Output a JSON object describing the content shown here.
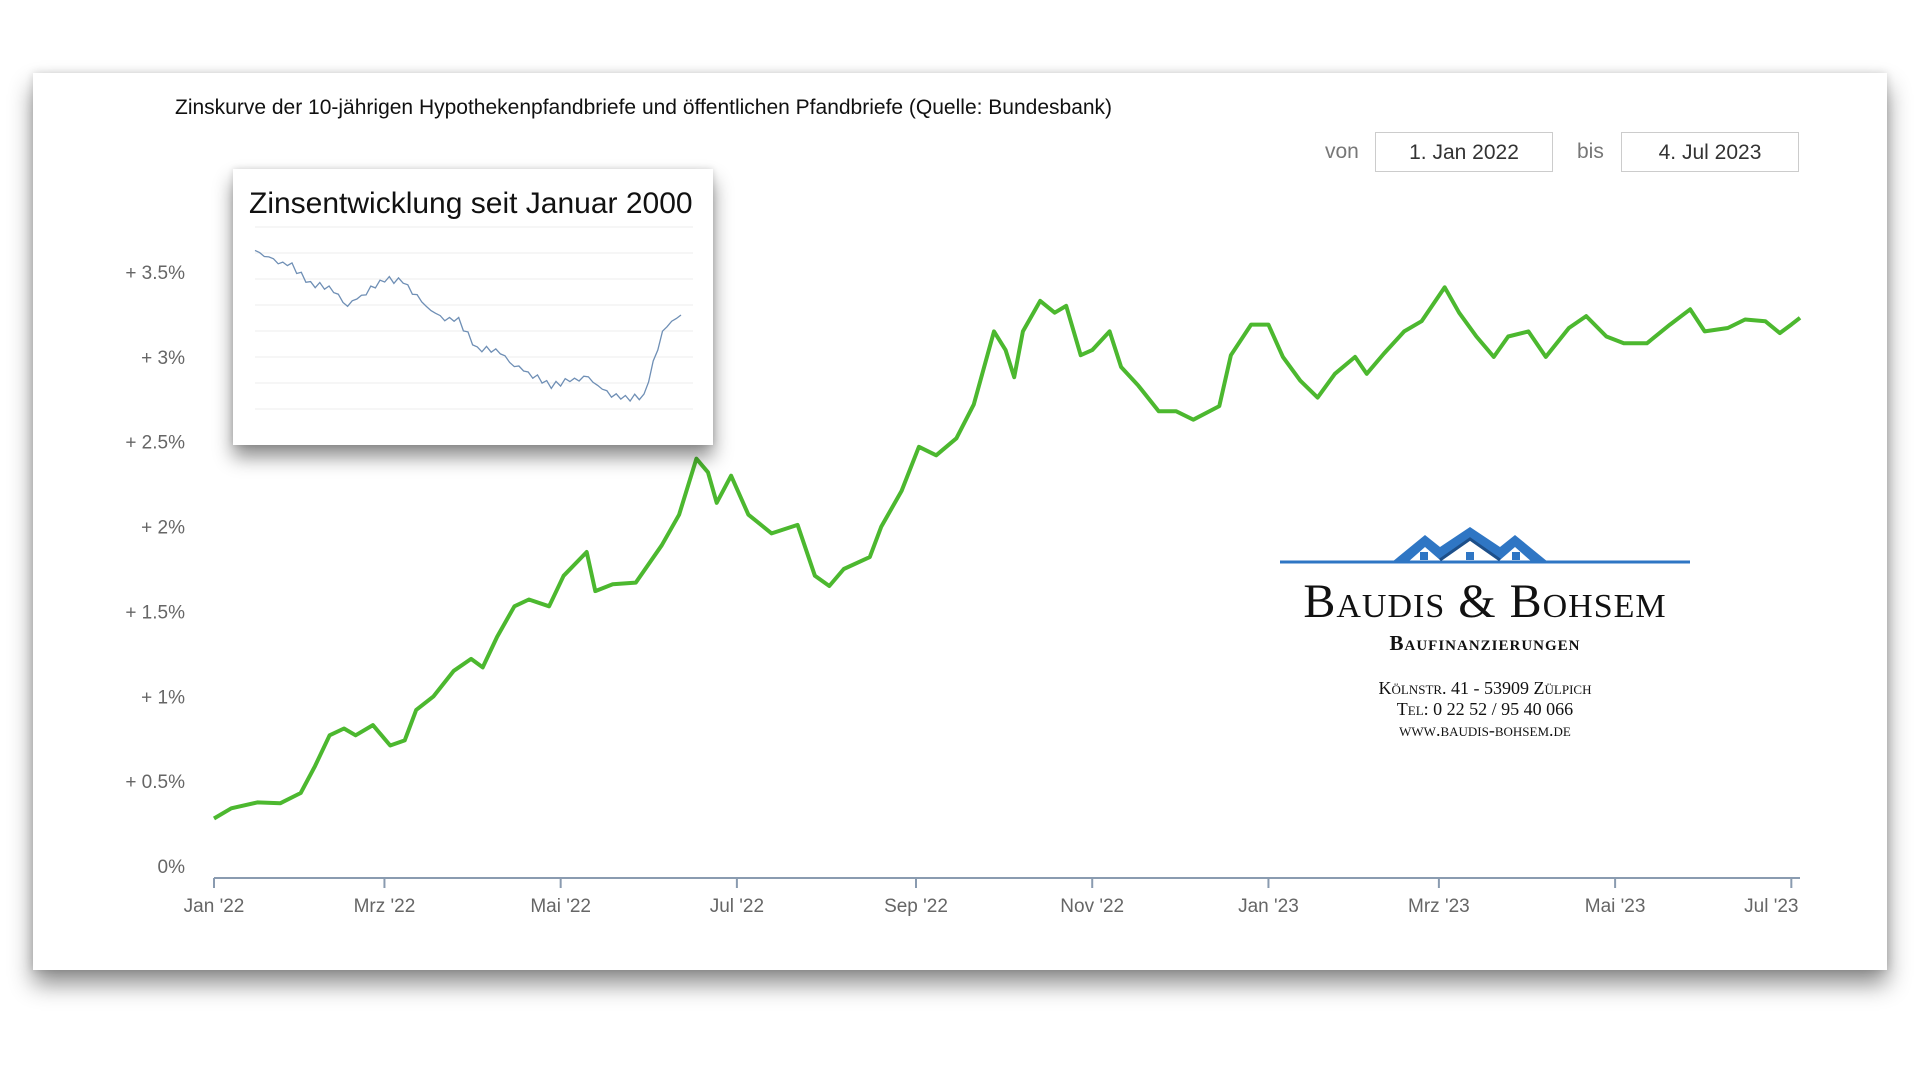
{
  "header": {
    "title": "Zinskurve der 10-jährigen Hypothekenpfandbriefe und öffentlichen Pfandbriefe (Quelle: Bundesbank)",
    "range_from_label": "von",
    "range_from_value": "1. Jan 2022",
    "range_to_label": "bis",
    "range_to_value": "4. Jul 2023"
  },
  "inset": {
    "title": "Zinsentwicklung seit Januar 2000"
  },
  "logo": {
    "brand": "Baudis & Bohsem",
    "subtitle": "Baufinanzierungen",
    "address": "Kölnstr. 41 - 53909 Zülpich",
    "phone": "Tel: 0 22 52 / 95 40 066",
    "web": "www.baudis-bohsem.de",
    "color": "#2f76c4"
  },
  "chart_data": [
    {
      "type": "line",
      "title": "Zinskurve der 10-jährigen Hypothekenpfandbriefe und öffentlichen Pfandbriefe (Quelle: Bundesbank)",
      "xlabel": "",
      "ylabel": "",
      "ylim": [
        0,
        3.5
      ],
      "xlim": [
        "2022-01-01",
        "2023-07-04"
      ],
      "grid": false,
      "line_color": "#4cb82f",
      "yticks": [
        {
          "value": 0,
          "label": "0%"
        },
        {
          "value": 0.5,
          "label": "+ 0.5%"
        },
        {
          "value": 1,
          "label": "+ 1%"
        },
        {
          "value": 1.5,
          "label": "+ 1.5%"
        },
        {
          "value": 2,
          "label": "+ 2%"
        },
        {
          "value": 2.5,
          "label": "+ 2.5%"
        },
        {
          "value": 3,
          "label": "+ 3%"
        },
        {
          "value": 3.5,
          "label": "+ 3.5%"
        }
      ],
      "xticks": [
        {
          "date": "2022-01-01",
          "label": "Jan '22"
        },
        {
          "date": "2022-03-01",
          "label": "Mrz '22"
        },
        {
          "date": "2022-05-01",
          "label": "Mai '22"
        },
        {
          "date": "2022-07-01",
          "label": "Jul '22"
        },
        {
          "date": "2022-09-01",
          "label": "Sep '22"
        },
        {
          "date": "2022-11-01",
          "label": "Nov '22"
        },
        {
          "date": "2023-01-01",
          "label": "Jan '23"
        },
        {
          "date": "2023-03-01",
          "label": "Mrz '23"
        },
        {
          "date": "2023-05-01",
          "label": "Mai '23"
        },
        {
          "date": "2023-07-01",
          "label": "Jul '23"
        }
      ],
      "x": [
        "2022-01-01",
        "2022-01-07",
        "2022-01-16",
        "2022-01-24",
        "2022-01-31",
        "2022-02-05",
        "2022-02-10",
        "2022-02-15",
        "2022-02-19",
        "2022-02-25",
        "2022-03-03",
        "2022-03-08",
        "2022-03-12",
        "2022-03-18",
        "2022-03-25",
        "2022-03-31",
        "2022-04-04",
        "2022-04-09",
        "2022-04-15",
        "2022-04-20",
        "2022-04-27",
        "2022-05-02",
        "2022-05-10",
        "2022-05-13",
        "2022-05-19",
        "2022-05-27",
        "2022-06-05",
        "2022-06-11",
        "2022-06-17",
        "2022-06-21",
        "2022-06-24",
        "2022-06-29",
        "2022-07-05",
        "2022-07-13",
        "2022-07-22",
        "2022-07-28",
        "2022-08-02",
        "2022-08-07",
        "2022-08-16",
        "2022-08-20",
        "2022-08-27",
        "2022-09-02",
        "2022-09-08",
        "2022-09-15",
        "2022-09-21",
        "2022-09-28",
        "2022-10-02",
        "2022-10-05",
        "2022-10-08",
        "2022-10-14",
        "2022-10-19",
        "2022-10-23",
        "2022-10-28",
        "2022-11-01",
        "2022-11-07",
        "2022-11-11",
        "2022-11-17",
        "2022-11-24",
        "2022-11-30",
        "2022-12-06",
        "2022-12-15",
        "2022-12-19",
        "2022-12-26",
        "2023-01-01",
        "2023-01-06",
        "2023-01-12",
        "2023-01-18",
        "2023-01-24",
        "2023-01-31",
        "2023-02-04",
        "2023-02-10",
        "2023-02-17",
        "2023-02-23",
        "2023-03-03",
        "2023-03-08",
        "2023-03-14",
        "2023-03-20",
        "2023-03-25",
        "2023-04-01",
        "2023-04-07",
        "2023-04-15",
        "2023-04-21",
        "2023-04-28",
        "2023-05-04",
        "2023-05-12",
        "2023-05-20",
        "2023-05-27",
        "2023-06-01",
        "2023-06-09",
        "2023-06-15",
        "2023-06-22",
        "2023-06-27",
        "2023-07-01",
        "2023-07-04"
      ],
      "y": [
        0.28,
        0.34,
        0.375,
        0.37,
        0.43,
        0.59,
        0.77,
        0.81,
        0.77,
        0.83,
        0.71,
        0.74,
        0.92,
        1.0,
        1.15,
        1.22,
        1.17,
        1.35,
        1.53,
        1.57,
        1.53,
        1.71,
        1.85,
        1.62,
        1.66,
        1.67,
        1.89,
        2.07,
        2.4,
        2.32,
        2.14,
        2.3,
        2.07,
        1.96,
        2.01,
        1.71,
        1.65,
        1.75,
        1.82,
        2.0,
        2.21,
        2.47,
        2.42,
        2.52,
        2.72,
        3.15,
        3.04,
        2.88,
        3.15,
        3.33,
        3.26,
        3.3,
        3.01,
        3.04,
        3.15,
        2.94,
        2.83,
        2.68,
        2.68,
        2.63,
        2.71,
        3.01,
        3.19,
        3.19,
        3.0,
        2.86,
        2.76,
        2.9,
        3.0,
        2.9,
        3.02,
        3.15,
        3.21,
        3.41,
        3.26,
        3.12,
        3.0,
        3.12,
        3.15,
        3.0,
        3.17,
        3.24,
        3.12,
        3.08,
        3.08,
        3.19,
        3.28,
        3.15,
        3.17,
        3.22,
        3.21,
        3.14,
        3.19,
        3.23
      ]
    },
    {
      "type": "line",
      "title": "Zinsentwicklung seit Januar 2000",
      "line_color": "#6f8fb5",
      "grid": true,
      "x": [
        2000,
        2001,
        2002,
        2003,
        2004,
        2005,
        2006,
        2007,
        2008,
        2009,
        2010,
        2011,
        2012,
        2013,
        2014,
        2015,
        2016,
        2017,
        2018,
        2019,
        2020,
        2021,
        2022,
        2023
      ],
      "y": [
        5.6,
        5.2,
        5.0,
        4.3,
        4.2,
        3.5,
        4.0,
        4.5,
        4.4,
        3.6,
        3.0,
        2.9,
        1.8,
        1.8,
        1.2,
        0.8,
        0.4,
        0.6,
        0.7,
        0.1,
        -0.1,
        0.0,
        2.5,
        3.2
      ]
    }
  ]
}
